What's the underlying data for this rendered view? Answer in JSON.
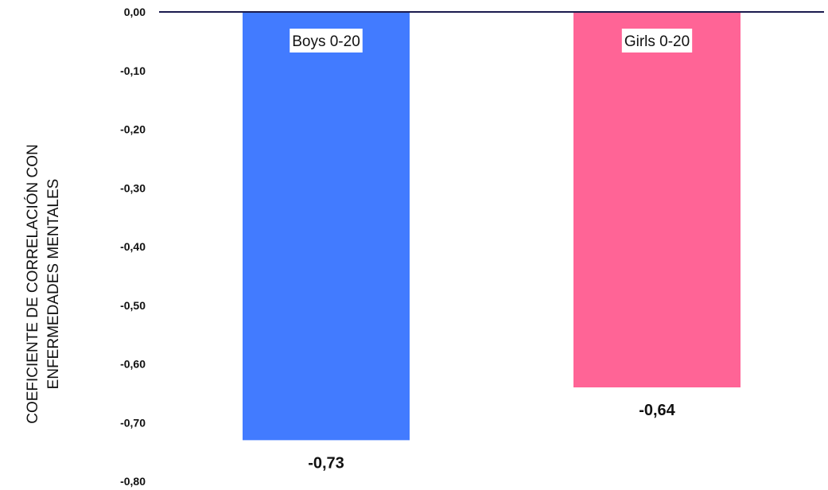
{
  "chart_data": {
    "type": "bar",
    "categories": [
      "Boys 0-20",
      "Girls 0-20"
    ],
    "values": [
      -0.73,
      -0.64
    ],
    "value_labels": [
      "-0,73",
      "-0,64"
    ],
    "colors": [
      "#427bff",
      "#ff6496"
    ],
    "axis_color": "#1a1a4e",
    "title": "",
    "xlabel": "",
    "ylabel_lines": [
      "COEFICIENTE DE CORRELACIÓN CON",
      "ENFERMEDADES MENTALES"
    ],
    "ylim": [
      -0.8,
      0
    ],
    "yticks": [
      0,
      -0.1,
      -0.2,
      -0.3,
      -0.4,
      -0.5,
      -0.6,
      -0.7,
      -0.8
    ],
    "ytick_labels": [
      "0,00",
      "-0,10",
      "-0,20",
      "-0,30",
      "-0,40",
      "-0,50",
      "-0,60",
      "-0,70",
      "-0,80"
    ],
    "grid": false,
    "legend": "none"
  }
}
